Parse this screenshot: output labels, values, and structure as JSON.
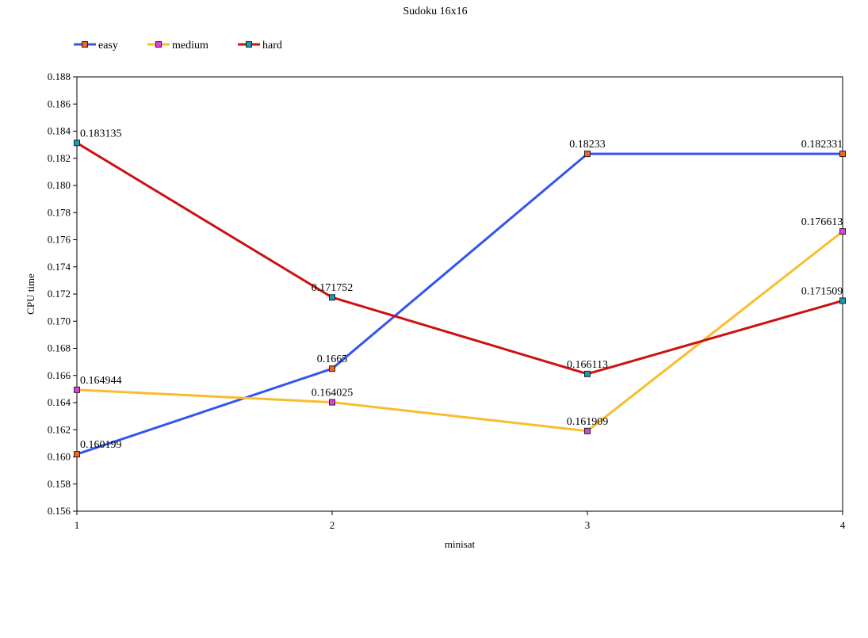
{
  "chart_data": {
    "type": "line",
    "title": "Sudoku 16x16",
    "xlabel": "minisat",
    "ylabel": "CPU time",
    "x": [
      1,
      2,
      3,
      4
    ],
    "xlim": [
      1,
      4
    ],
    "ylim": [
      0.156,
      0.188
    ],
    "ytick_step": 0.002,
    "grid": false,
    "legend_position": "top-left",
    "series": [
      {
        "name": "easy",
        "color": "#3355ee",
        "marker_color": "#f26522",
        "values": [
          0.160199,
          0.1665,
          0.18233,
          0.182331
        ],
        "labels": [
          "0.160199",
          "0.1665",
          "0.18233",
          "0.182331"
        ]
      },
      {
        "name": "medium",
        "color": "#fbbc2b",
        "marker_color": "#e040e0",
        "values": [
          0.164944,
          0.164025,
          0.161909,
          0.176613
        ],
        "labels": [
          "0.164944",
          "0.164025",
          "0.161909",
          "0.176613"
        ]
      },
      {
        "name": "hard",
        "color": "#cc1111",
        "marker_color": "#1a9ab0",
        "values": [
          0.183135,
          0.171752,
          0.166113,
          0.171509
        ],
        "labels": [
          "0.183135",
          "0.171752",
          "0.166113",
          "0.171509"
        ]
      }
    ]
  }
}
